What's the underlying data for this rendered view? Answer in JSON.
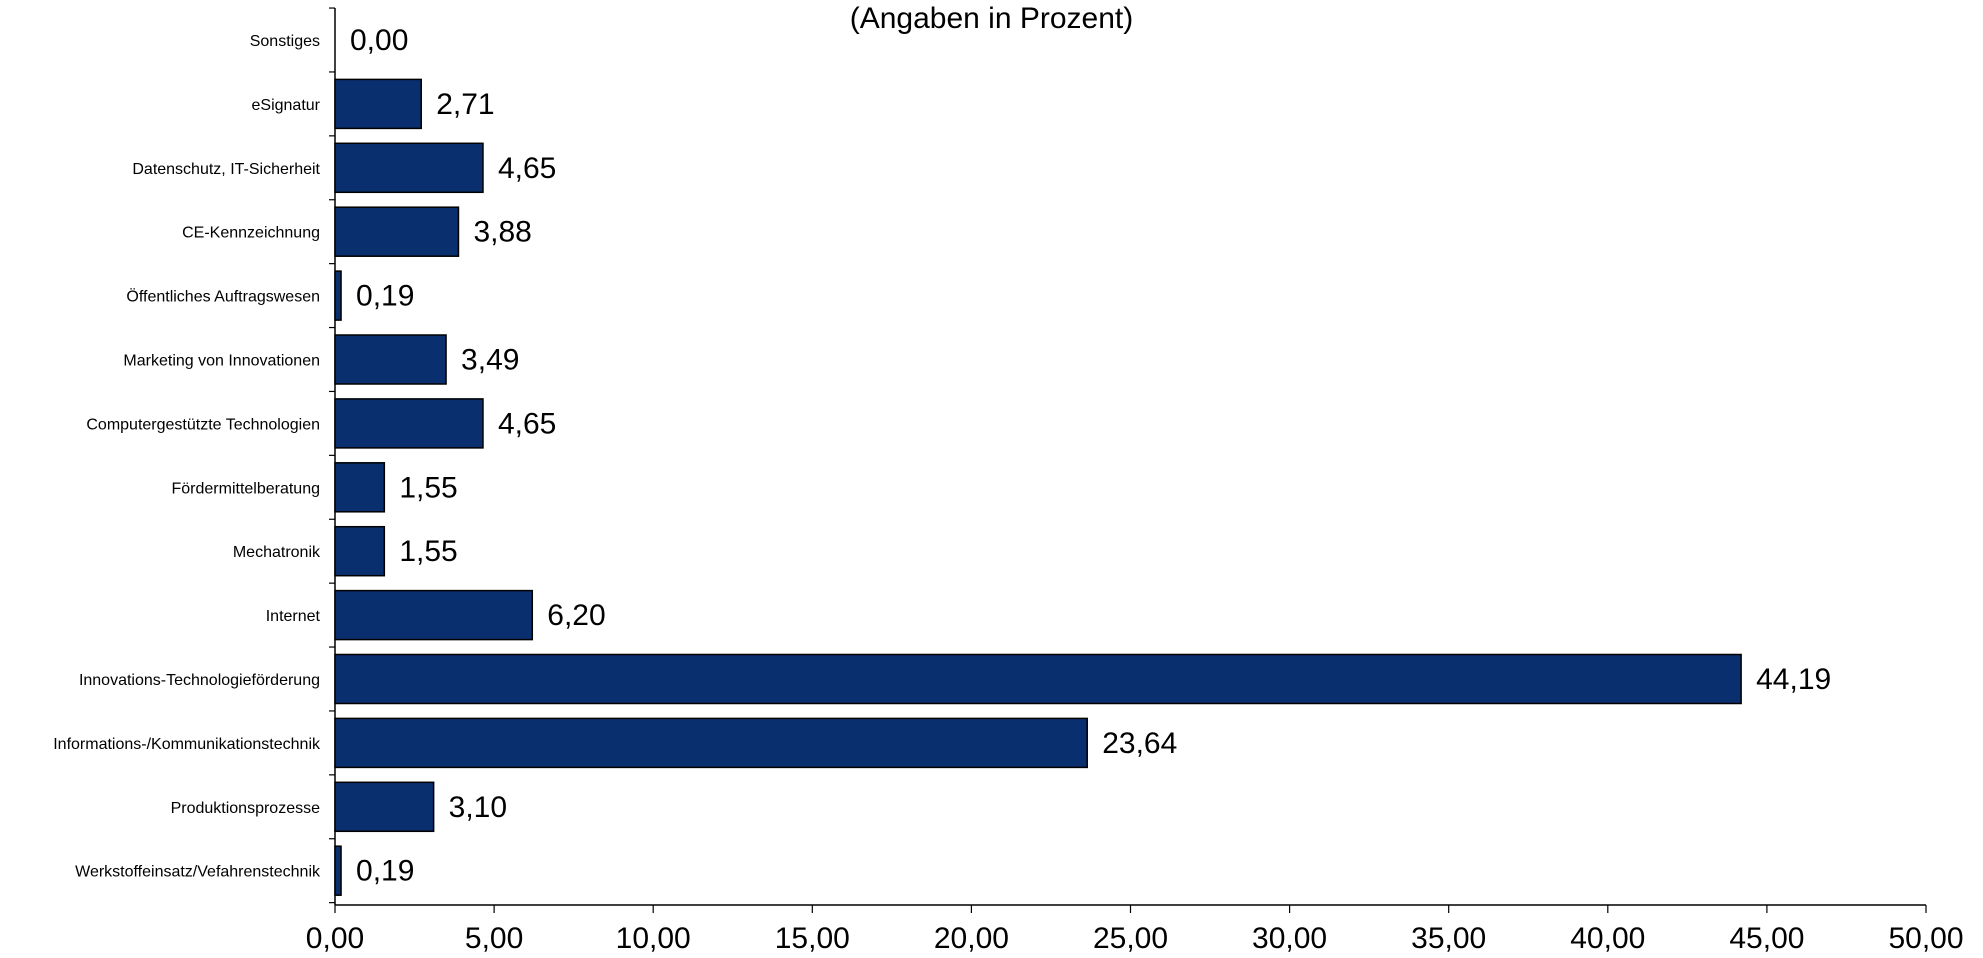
{
  "chart_data": {
    "type": "bar",
    "orientation": "horizontal",
    "subtitle": "(Angaben in Prozent)",
    "categories": [
      "Sonstiges",
      "eSignatur",
      "Datenschutz, IT-Sicherheit",
      "CE-Kennzeichnung",
      "Öffentliches Auftragswesen",
      "Marketing von Innovationen",
      "Computergestützte Technologien",
      "Fördermittelberatung",
      "Mechatronik",
      "Internet",
      "Innovations-Technologieförderung",
      "Informations-/Kommunikationstechnik",
      "Produktionsprozesse",
      "Werkstoffeinsatz/Vefahrenstechnik"
    ],
    "values": [
      0.0,
      2.71,
      4.65,
      3.88,
      0.19,
      3.49,
      4.65,
      1.55,
      1.55,
      6.2,
      44.19,
      23.64,
      3.1,
      0.19
    ],
    "value_labels": [
      "0,00",
      "2,71",
      "4,65",
      "3,88",
      "0,19",
      "3,49",
      "4,65",
      "1,55",
      "1,55",
      "6,20",
      "44,19",
      "23,64",
      "3,10",
      "0,19"
    ],
    "xlim": [
      0,
      50
    ],
    "xticks": [
      0,
      5,
      10,
      15,
      20,
      25,
      30,
      35,
      40,
      45,
      50
    ],
    "xtick_labels": [
      "0,00",
      "5,00",
      "10,00",
      "15,00",
      "20,00",
      "25,00",
      "30,00",
      "35,00",
      "40,00",
      "45,00",
      "50,00"
    ],
    "grid": false,
    "legend": "none",
    "bar_color": "#0a2f6e",
    "bar_edge_color": "#000000"
  }
}
